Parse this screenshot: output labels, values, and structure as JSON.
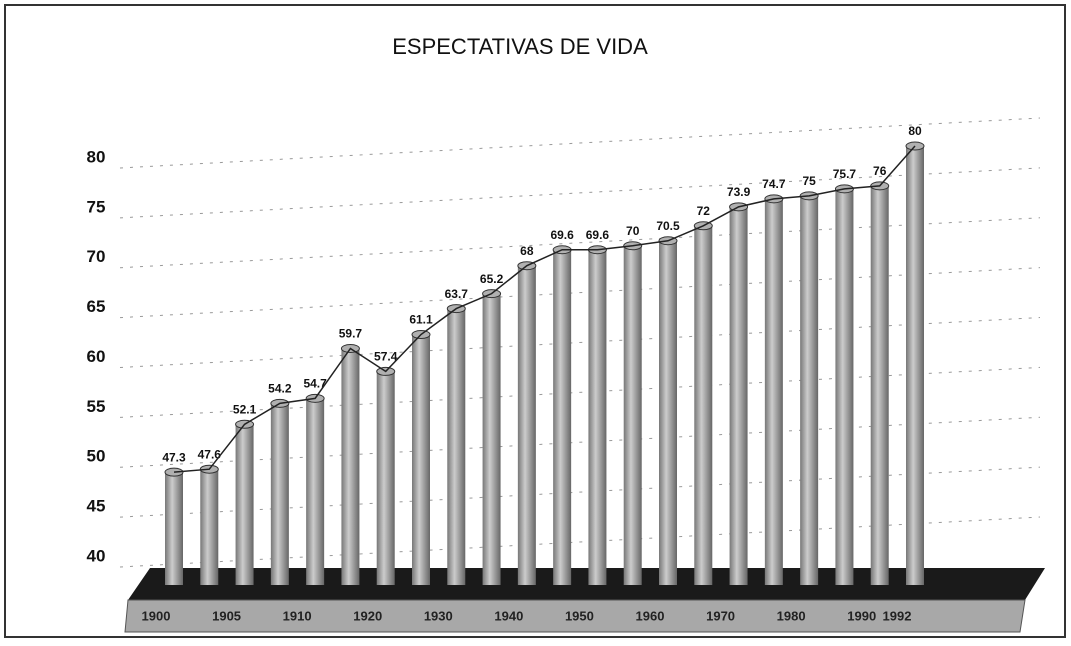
{
  "chart_data": {
    "type": "bar3d",
    "title": "ESPECTATIVAS DE VIDA",
    "categories": [
      "1900",
      null,
      "1905",
      null,
      "1910",
      null,
      "1920",
      null,
      "1930",
      null,
      "1940",
      null,
      "1950",
      null,
      "1960",
      null,
      "1970",
      null,
      "1980",
      null,
      "1990",
      "1992"
    ],
    "values": [
      47.3,
      47.6,
      52.1,
      54.2,
      54.7,
      59.7,
      57.4,
      61.1,
      63.7,
      65.2,
      68,
      69.6,
      69.6,
      70,
      70.5,
      72,
      73.9,
      74.7,
      75,
      75.7,
      76,
      80
    ],
    "color": "#b0b0b0",
    "line_color": "#222222",
    "ylim": [
      40,
      80
    ],
    "yticks": [
      40,
      45,
      50,
      55,
      60,
      65,
      70,
      75,
      80
    ],
    "grid": true
  }
}
